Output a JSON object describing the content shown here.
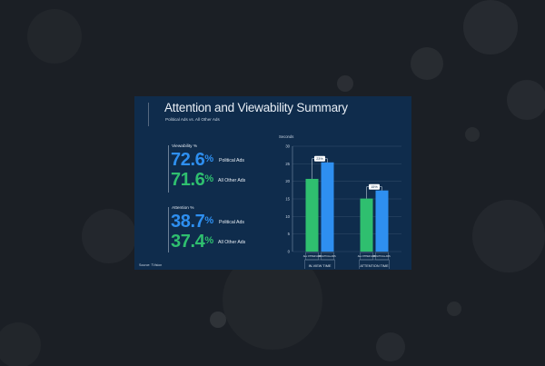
{
  "slide": {
    "title": "Attention and Viewability Summary",
    "subtitle": "Political Ads vs. All Other Ads",
    "source_label": "Source: TVision"
  },
  "metrics": {
    "viewability": {
      "label": "Viewability %",
      "political": {
        "value": "72.6",
        "unit": "%",
        "label": "Political Ads"
      },
      "other": {
        "value": "71.6",
        "unit": "%",
        "label": "All Other Ads"
      }
    },
    "attention": {
      "label": "Attention %",
      "political": {
        "value": "38.7",
        "unit": "%",
        "label": "Political Ads"
      },
      "other": {
        "value": "37.4",
        "unit": "%",
        "label": "All Other Ads"
      }
    }
  },
  "colors": {
    "background": "#1b1f25",
    "slide": "#0f2c4c",
    "political": "#2e8ff0",
    "other": "#2fbf6f",
    "text": "#e8eef5"
  },
  "chart_data": {
    "type": "bar",
    "ylabel": "Seconds",
    "ylim": [
      0,
      30
    ],
    "yticks": [
      0,
      5,
      10,
      15,
      20,
      25,
      30
    ],
    "grid": true,
    "groups": [
      {
        "name": "IN-VIEW TIME",
        "delta_label": "23%"
      },
      {
        "name": "ATTENTION TIME",
        "delta_label": "15%"
      }
    ],
    "series": [
      {
        "name": "ALL OTHER ADS",
        "color": "#2fbf6f",
        "values": [
          20.7,
          15.1
        ]
      },
      {
        "name": "POLITICAL ADS",
        "color": "#2e8ff0",
        "values": [
          25.4,
          17.4
        ]
      }
    ]
  }
}
